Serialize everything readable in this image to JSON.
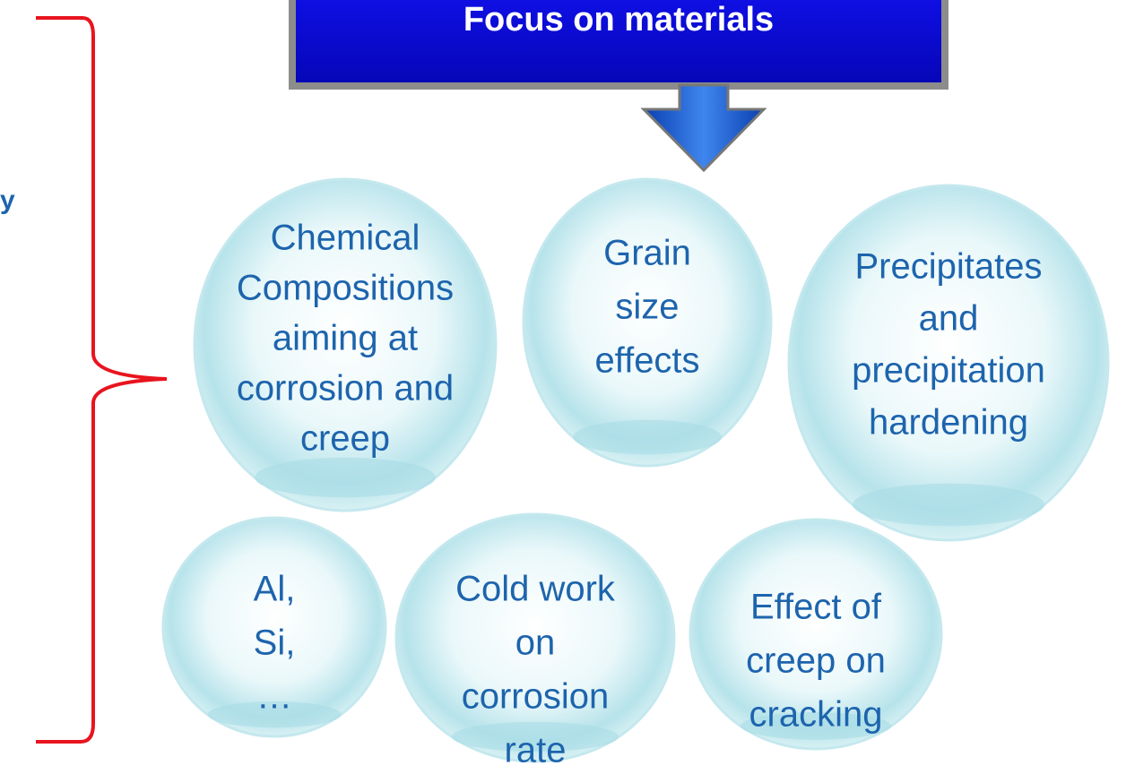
{
  "banner": {
    "title": "Focus on materials"
  },
  "side_label": "y",
  "bubbles": [
    {
      "lines": [
        "Chemical",
        "Compositions",
        "aiming at",
        "corrosion and",
        "creep"
      ]
    },
    {
      "lines": [
        "Grain",
        "size",
        "effects"
      ]
    },
    {
      "lines": [
        "Precipitates",
        "and",
        "precipitation",
        "hardening"
      ]
    },
    {
      "lines": [
        "Al,",
        "Si,",
        "…"
      ]
    },
    {
      "lines": [
        "Cold work",
        "on",
        "corrosion",
        "rate"
      ]
    },
    {
      "lines": [
        "Effect of",
        "creep on",
        "cracking"
      ]
    }
  ]
}
